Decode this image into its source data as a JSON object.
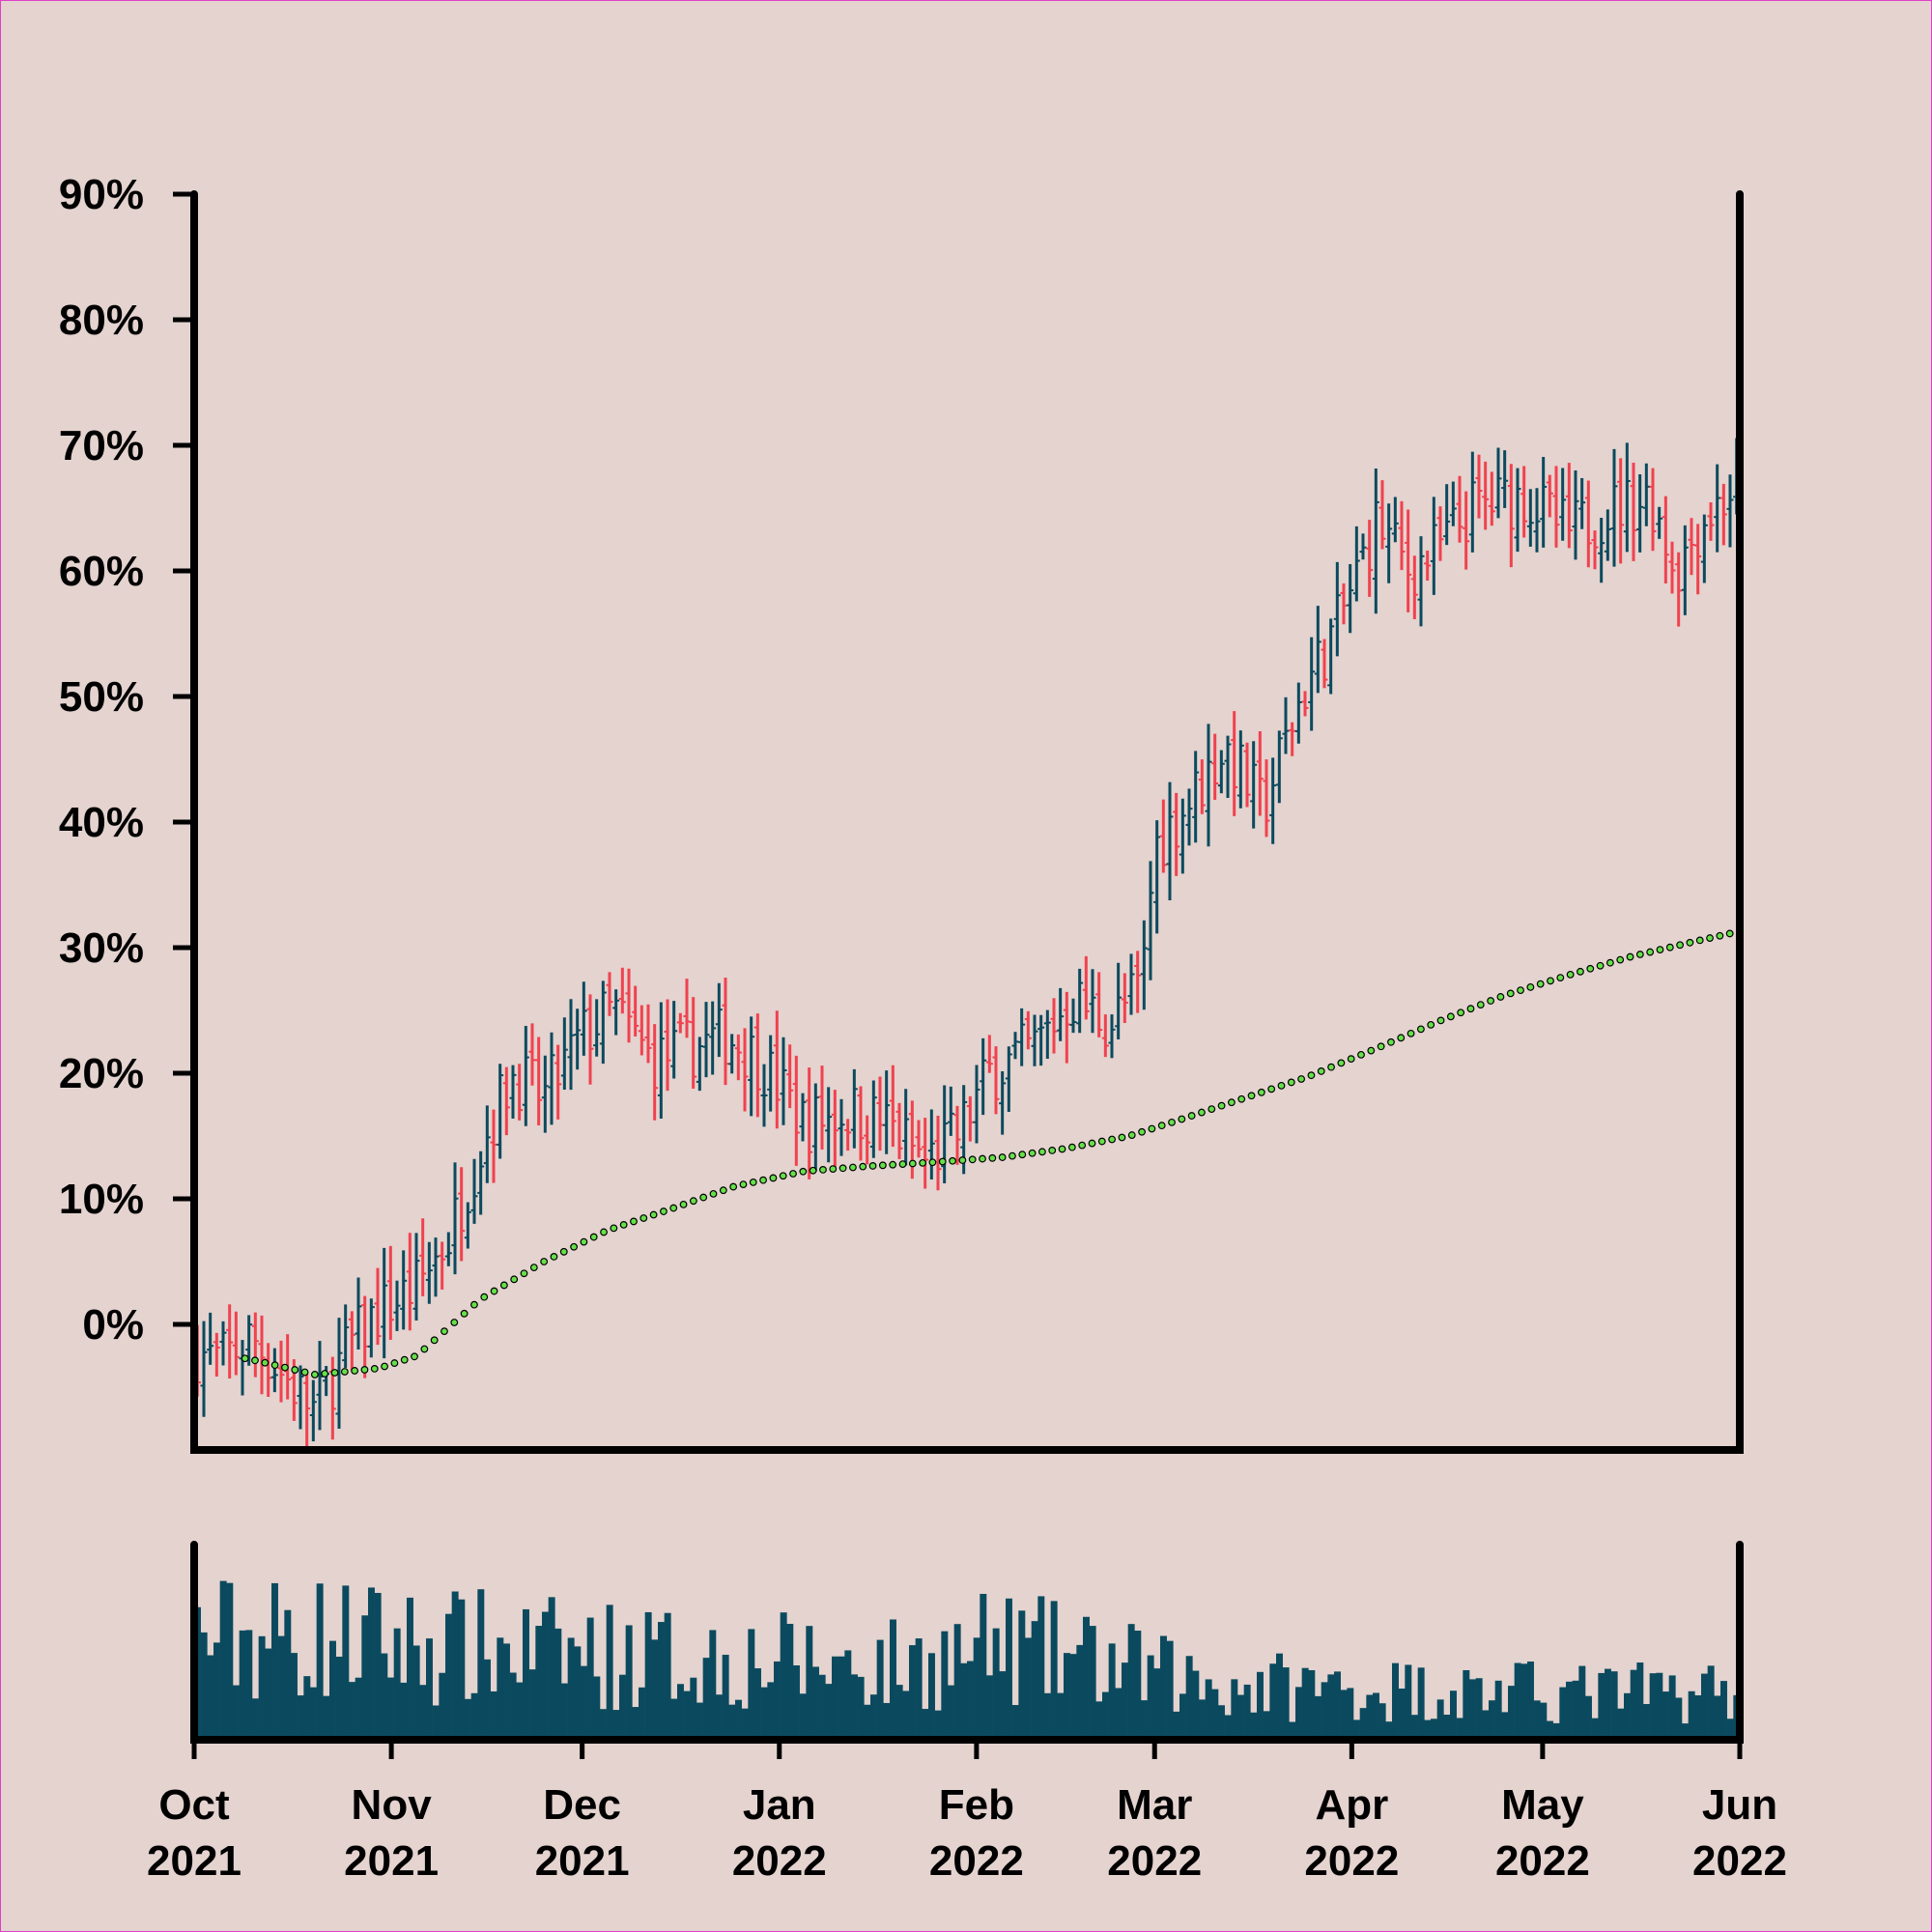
{
  "colors": {
    "background": "#e4d3cf",
    "up": "#0b4a5e",
    "down": "#f0424f",
    "ma": "#66e04a",
    "volume": "#0b4a5e",
    "axis": "#000000"
  },
  "chart_data": {
    "type": "ohlc",
    "title": "",
    "xlabel": "",
    "ylabel": "",
    "ylim": [
      -10,
      90
    ],
    "y_ticks": [
      {
        "value": 0,
        "label": "0%"
      },
      {
        "value": 10,
        "label": "10%"
      },
      {
        "value": 20,
        "label": "20%"
      },
      {
        "value": 30,
        "label": "30%"
      },
      {
        "value": 40,
        "label": "40%"
      },
      {
        "value": 50,
        "label": "50%"
      },
      {
        "value": 60,
        "label": "60%"
      },
      {
        "value": 70,
        "label": "70%"
      },
      {
        "value": 80,
        "label": "80%"
      },
      {
        "value": 90,
        "label": "90%"
      }
    ],
    "xlim": [
      "2021-10-01",
      "2022-06-01"
    ],
    "x_ticks": [
      {
        "date": "2021-10-01",
        "month": "Oct",
        "year": "2021"
      },
      {
        "date": "2021-11-01",
        "month": "Nov",
        "year": "2021"
      },
      {
        "date": "2021-12-01",
        "month": "Dec",
        "year": "2021"
      },
      {
        "date": "2022-01-01",
        "month": "Jan",
        "year": "2022"
      },
      {
        "date": "2022-02-01",
        "month": "Feb",
        "year": "2022"
      },
      {
        "date": "2022-03-01",
        "month": "Mar",
        "year": "2022"
      },
      {
        "date": "2022-04-01",
        "month": "Apr",
        "year": "2022"
      },
      {
        "date": "2022-05-01",
        "month": "May",
        "year": "2022"
      },
      {
        "date": "2022-06-01",
        "month": "Jun",
        "year": "2022"
      }
    ],
    "close_path": [
      [
        "2021-10-01",
        -2
      ],
      [
        "2021-10-05",
        -3
      ],
      [
        "2021-10-10",
        -1
      ],
      [
        "2021-10-15",
        -4
      ],
      [
        "2021-10-20",
        -7
      ],
      [
        "2021-10-25",
        -2
      ],
      [
        "2021-10-30",
        1
      ],
      [
        "2021-11-05",
        3
      ],
      [
        "2021-11-10",
        7
      ],
      [
        "2021-11-15",
        14
      ],
      [
        "2021-11-20",
        20
      ],
      [
        "2021-11-25",
        18
      ],
      [
        "2021-12-01",
        23
      ],
      [
        "2021-12-06",
        25
      ],
      [
        "2021-12-12",
        21
      ],
      [
        "2021-12-18",
        22
      ],
      [
        "2021-12-24",
        23
      ],
      [
        "2021-12-29",
        21
      ],
      [
        "2022-01-05",
        16
      ],
      [
        "2022-01-12",
        17
      ],
      [
        "2022-01-18",
        16
      ],
      [
        "2022-01-24",
        13
      ],
      [
        "2022-01-29",
        15
      ],
      [
        "2022-02-03",
        20
      ],
      [
        "2022-02-10",
        22
      ],
      [
        "2022-02-16",
        26
      ],
      [
        "2022-02-22",
        24
      ],
      [
        "2022-02-27",
        27
      ],
      [
        "2022-03-01",
        38
      ],
      [
        "2022-03-07",
        42
      ],
      [
        "2022-03-12",
        46
      ],
      [
        "2022-03-18",
        41
      ],
      [
        "2022-03-24",
        50
      ],
      [
        "2022-03-30",
        56
      ],
      [
        "2022-04-05",
        64
      ],
      [
        "2022-04-10",
        60
      ],
      [
        "2022-04-15",
        62
      ],
      [
        "2022-04-20",
        65
      ],
      [
        "2022-04-28",
        66
      ],
      [
        "2022-05-05",
        63
      ],
      [
        "2022-05-12",
        65
      ],
      [
        "2022-05-18",
        66
      ],
      [
        "2022-05-22",
        60
      ],
      [
        "2022-05-26",
        64
      ],
      [
        "2022-06-01",
        67
      ]
    ],
    "ma_path": [
      [
        "2021-10-01",
        -2
      ],
      [
        "2021-10-10",
        -2.8
      ],
      [
        "2021-10-20",
        -4
      ],
      [
        "2021-10-30",
        -3.5
      ],
      [
        "2021-11-05",
        -2.5
      ],
      [
        "2021-11-15",
        2
      ],
      [
        "2021-11-25",
        5
      ],
      [
        "2021-12-05",
        7.5
      ],
      [
        "2021-12-15",
        9.2
      ],
      [
        "2021-12-25",
        11
      ],
      [
        "2022-01-05",
        12.2
      ],
      [
        "2022-01-15",
        12.6
      ],
      [
        "2022-01-25",
        12.9
      ],
      [
        "2022-02-05",
        13.3
      ],
      [
        "2022-02-15",
        14
      ],
      [
        "2022-02-25",
        15
      ],
      [
        "2022-03-05",
        16.3
      ],
      [
        "2022-03-15",
        18
      ],
      [
        "2022-03-25",
        19.7
      ],
      [
        "2022-04-05",
        22
      ],
      [
        "2022-04-15",
        24.2
      ],
      [
        "2022-04-25",
        26.2
      ],
      [
        "2022-05-05",
        27.8
      ],
      [
        "2022-05-15",
        29.3
      ],
      [
        "2022-05-25",
        30.5
      ],
      [
        "2022-06-01",
        31.3
      ]
    ],
    "volume_level_path": [
      [
        "2021-10-01",
        0.55
      ],
      [
        "2021-10-20",
        0.55
      ],
      [
        "2021-11-10",
        0.5
      ],
      [
        "2021-12-10",
        0.45
      ],
      [
        "2022-01-05",
        0.42
      ],
      [
        "2022-01-20",
        0.4
      ],
      [
        "2022-02-05",
        0.5
      ],
      [
        "2022-02-20",
        0.42
      ],
      [
        "2022-03-10",
        0.3
      ],
      [
        "2022-04-10",
        0.27
      ],
      [
        "2022-05-10",
        0.25
      ],
      [
        "2022-06-01",
        0.27
      ]
    ],
    "series": [
      {
        "kind": "ohlc-bars"
      },
      {
        "kind": "moving-average"
      },
      {
        "kind": "volume-bars"
      }
    ]
  }
}
